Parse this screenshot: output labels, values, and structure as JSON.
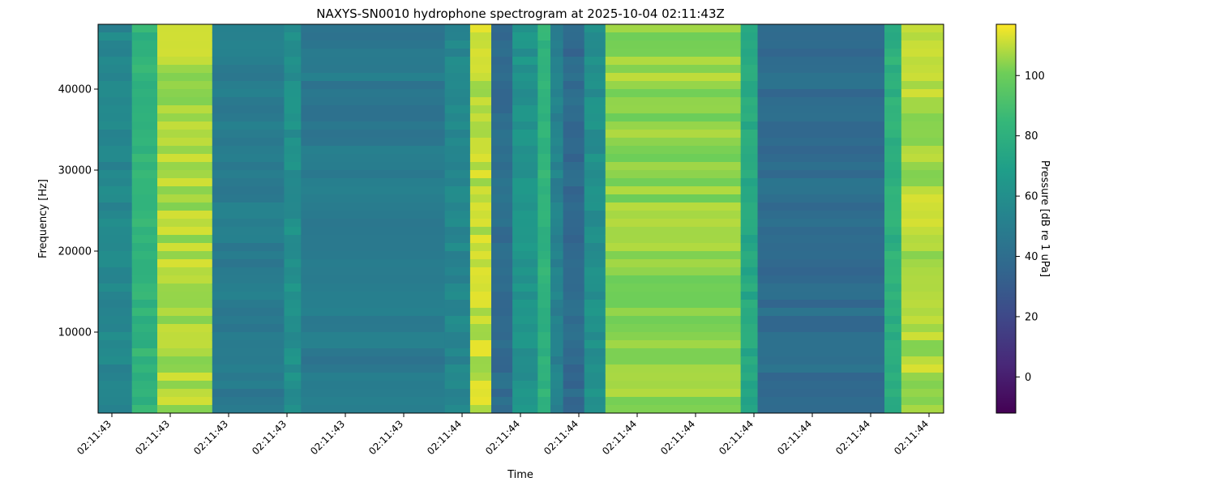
{
  "chart_data": {
    "type": "heatmap",
    "title": "NAXYS-SN0010 hydrophone spectrogram at 2025-10-04 02:11:43Z",
    "xlabel": "Time",
    "ylabel": "Frequency [Hz]",
    "x_tick_labels": [
      "02:11:43",
      "02:11:43",
      "02:11:43",
      "02:11:43",
      "02:11:43",
      "02:11:43",
      "02:11:44",
      "02:11:44",
      "02:11:44",
      "02:11:44",
      "02:11:44",
      "02:11:44",
      "02:11:44",
      "02:11:44",
      "02:11:44"
    ],
    "y_ticks": [
      10000,
      20000,
      30000,
      40000
    ],
    "ylim": [
      0,
      48000
    ],
    "colormap": "viridis",
    "colorbar": {
      "label": "Pressure [dB re 1 uPa]",
      "range": [
        -12,
        117
      ],
      "ticks": [
        0,
        20,
        40,
        60,
        80,
        100
      ]
    },
    "time_segments_db": [
      {
        "t_frac_start": 0.0,
        "t_frac_end": 0.04,
        "level_db": 55
      },
      {
        "t_frac_start": 0.04,
        "t_frac_end": 0.07,
        "level_db": 82
      },
      {
        "t_frac_start": 0.07,
        "t_frac_end": 0.135,
        "level_db": 108
      },
      {
        "t_frac_start": 0.135,
        "t_frac_end": 0.22,
        "level_db": 48
      },
      {
        "t_frac_start": 0.22,
        "t_frac_end": 0.24,
        "level_db": 60
      },
      {
        "t_frac_start": 0.24,
        "t_frac_end": 0.41,
        "level_db": 47
      },
      {
        "t_frac_start": 0.41,
        "t_frac_end": 0.44,
        "level_db": 55
      },
      {
        "t_frac_start": 0.44,
        "t_frac_end": 0.465,
        "level_db": 110
      },
      {
        "t_frac_start": 0.465,
        "t_frac_end": 0.49,
        "level_db": 40
      },
      {
        "t_frac_start": 0.49,
        "t_frac_end": 0.52,
        "level_db": 62
      },
      {
        "t_frac_start": 0.52,
        "t_frac_end": 0.535,
        "level_db": 82
      },
      {
        "t_frac_start": 0.535,
        "t_frac_end": 0.55,
        "level_db": 52
      },
      {
        "t_frac_start": 0.55,
        "t_frac_end": 0.575,
        "level_db": 38
      },
      {
        "t_frac_start": 0.575,
        "t_frac_end": 0.6,
        "level_db": 60
      },
      {
        "t_frac_start": 0.6,
        "t_frac_end": 0.76,
        "level_db": 105
      },
      {
        "t_frac_start": 0.76,
        "t_frac_end": 0.78,
        "level_db": 75
      },
      {
        "t_frac_start": 0.78,
        "t_frac_end": 0.93,
        "level_db": 40
      },
      {
        "t_frac_start": 0.93,
        "t_frac_end": 0.95,
        "level_db": 80
      },
      {
        "t_frac_start": 0.95,
        "t_frac_end": 1.0,
        "level_db": 108
      }
    ]
  }
}
